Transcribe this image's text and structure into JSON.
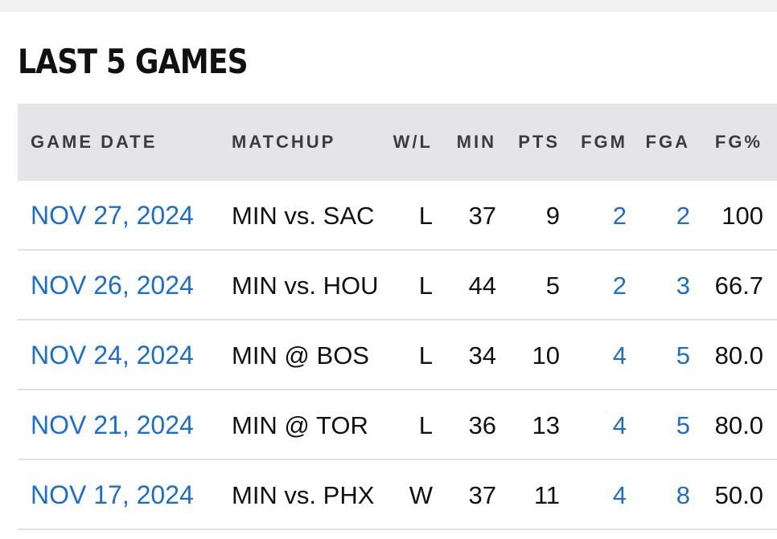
{
  "section": {
    "title": "LAST 5 GAMES"
  },
  "table": {
    "headers": {
      "game_date": "GAME DATE",
      "matchup": "MATCHUP",
      "wl": "W/L",
      "min": "MIN",
      "pts": "PTS",
      "fgm": "FGM",
      "fga": "FGA",
      "fg_pct": "FG%"
    },
    "rows": [
      {
        "game_date": "NOV 27, 2024",
        "matchup": "MIN vs. SAC",
        "wl": "L",
        "min": "37",
        "pts": "9",
        "fgm": "2",
        "fga": "2",
        "fg_pct": "100"
      },
      {
        "game_date": "NOV 26, 2024",
        "matchup": "MIN vs. HOU",
        "wl": "L",
        "min": "44",
        "pts": "5",
        "fgm": "2",
        "fga": "3",
        "fg_pct": "66.7"
      },
      {
        "game_date": "NOV 24, 2024",
        "matchup": "MIN @ BOS",
        "wl": "L",
        "min": "34",
        "pts": "10",
        "fgm": "4",
        "fga": "5",
        "fg_pct": "80.0"
      },
      {
        "game_date": "NOV 21, 2024",
        "matchup": "MIN @ TOR",
        "wl": "L",
        "min": "36",
        "pts": "13",
        "fgm": "4",
        "fga": "5",
        "fg_pct": "80.0"
      },
      {
        "game_date": "NOV 17, 2024",
        "matchup": "MIN vs. PHX",
        "wl": "W",
        "min": "37",
        "pts": "11",
        "fgm": "4",
        "fga": "8",
        "fg_pct": "50.0"
      }
    ]
  },
  "colors": {
    "link": "#1a6ecd",
    "header_bg": "#e5e5e7",
    "top_bar": "#f1f1f2",
    "text": "#111111"
  }
}
